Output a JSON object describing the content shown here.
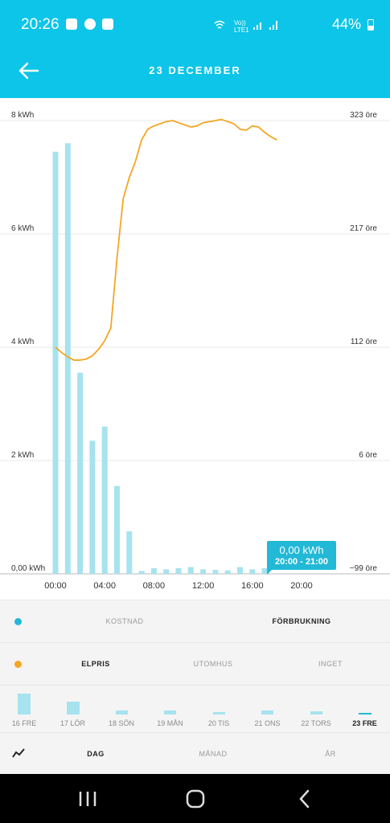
{
  "status_bar": {
    "time": "20:26",
    "battery": "44%",
    "network": "Vo)) LTE1"
  },
  "header": {
    "title": "23 DECEMBER"
  },
  "chart_data": {
    "type": "bar",
    "categories": [
      "00:00",
      "01:00",
      "02:00",
      "03:00",
      "04:00",
      "05:00",
      "06:00",
      "07:00",
      "08:00",
      "09:00",
      "10:00",
      "11:00",
      "12:00",
      "13:00",
      "14:00",
      "15:00",
      "16:00",
      "17:00",
      "18:00",
      "19:00",
      "20:00"
    ],
    "x_tick_labels": [
      "00:00",
      "04:00",
      "08:00",
      "12:00",
      "16:00",
      "20:00"
    ],
    "series": [
      {
        "type": "bar",
        "axis": "left",
        "values": [
          7.45,
          7.6,
          3.55,
          2.35,
          2.6,
          1.55,
          0.75,
          0.05,
          0.1,
          0.08,
          0.1,
          0.12,
          0.08,
          0.07,
          0.06,
          0.12,
          0.08,
          0.1,
          0,
          0,
          0
        ]
      },
      {
        "type": "line",
        "axis": "right",
        "x": [
          0,
          0.5,
          1,
          1.5,
          2,
          2.5,
          3,
          3.5,
          4,
          4.5,
          5,
          5.5,
          6,
          6.5,
          7,
          7.5,
          8,
          8.5,
          9,
          9.5,
          10,
          10.5,
          11,
          11.5,
          12,
          12.5,
          13,
          13.5,
          14,
          14.5,
          15,
          15.5,
          16,
          16.5,
          17,
          17.5,
          18
        ],
        "values": [
          112,
          107,
          103,
          100,
          100,
          101,
          104,
          110,
          118,
          130,
          195,
          250,
          270,
          285,
          305,
          315,
          318,
          320,
          322,
          323,
          321,
          319,
          317,
          318,
          321,
          322,
          323,
          324,
          322,
          320,
          315,
          314,
          318,
          317,
          312,
          308,
          305
        ]
      }
    ],
    "y_left": {
      "ticks": [
        "0,00 kWh",
        "2 kWh",
        "4 kWh",
        "6 kWh",
        "8 kWh"
      ],
      "range": [
        0,
        8
      ]
    },
    "y_right": {
      "ticks": [
        "−99 öre",
        "6 öre",
        "112 öre",
        "217 öre",
        "323 öre"
      ],
      "range": [
        -99,
        323
      ]
    },
    "grid": true,
    "colors": {
      "bar": "#a6e3ee",
      "line": "#f5a623"
    },
    "tooltip": {
      "value": "0,00 kWh",
      "range": "20:00 - 21:00"
    }
  },
  "metric_row": {
    "dot_color": "#22b9d6",
    "options": [
      "KOSTNAD",
      "FÖRBRUKNING"
    ],
    "active": 1
  },
  "overlay_row": {
    "dot_color": "#f5a623",
    "options": [
      "ELPRIS",
      "UTOMHUS",
      "INGET"
    ],
    "active": 0
  },
  "days": [
    {
      "label": "16 FRE",
      "level": 1.0
    },
    {
      "label": "17 LÖR",
      "level": 0.62
    },
    {
      "label": "18 SÖN",
      "level": 0.2
    },
    {
      "label": "19 MÅN",
      "level": 0.2
    },
    {
      "label": "20 TIS",
      "level": 0.1
    },
    {
      "label": "21 ONS",
      "level": 0.2
    },
    {
      "label": "22 TORS",
      "level": 0.15
    },
    {
      "label": "23 FRE",
      "level": 0,
      "active": true
    }
  ],
  "period_row": {
    "icon": "trend-line-icon",
    "options": [
      "DAG",
      "MÅNAD",
      "ÅR"
    ],
    "active": 0
  },
  "nav": {
    "icons": [
      "recent-apps-icon",
      "home-icon",
      "back-icon"
    ]
  }
}
